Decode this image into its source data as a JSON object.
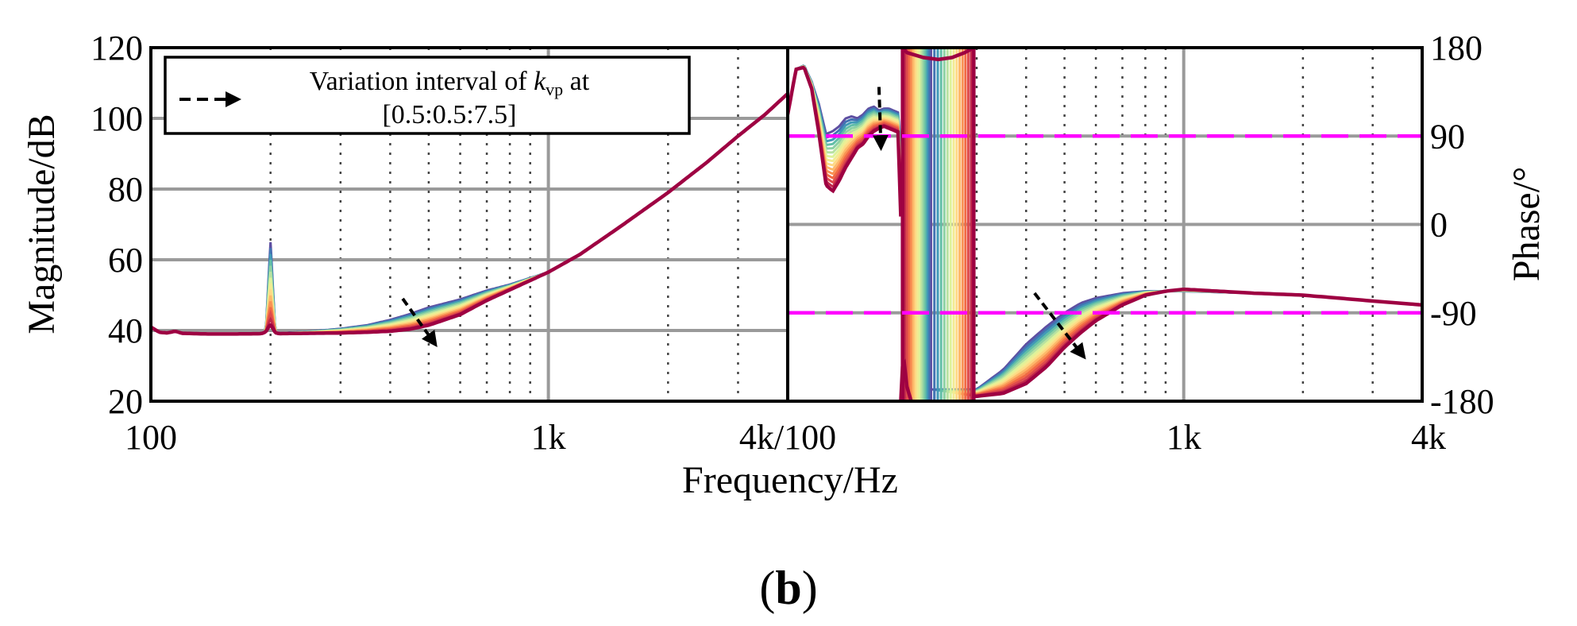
{
  "chart_data": {
    "type": "line",
    "panel_label": {
      "open": "(",
      "bold": "b",
      "close": ")"
    },
    "xlabel": "Frequency/Hz",
    "legend": {
      "line1_prefix": "Variation interval of ",
      "symbol": "k",
      "subscript": "vp",
      "line1_suffix": " at",
      "line2": "[0.5:0.5:7.5]",
      "kvp_min": 0.5,
      "kvp_step": 0.5,
      "kvp_max": 7.5,
      "curve_count": 15
    },
    "colors": {
      "reference_line": "#ff00ff",
      "arrow": "#000000",
      "palette": [
        "#5e4fa2",
        "#3288bd",
        "#66c2a5",
        "#abdda4",
        "#e6f598",
        "#fee08b",
        "#fdae61",
        "#f46d43",
        "#d53e4f",
        "#9e0142"
      ]
    },
    "magnitude": {
      "ylabel": "Magnitude/dB",
      "xlim": [
        100,
        4000
      ],
      "ylim": [
        20,
        120
      ],
      "xscale": "log",
      "xticks": [
        100,
        1000,
        4000
      ],
      "xtick_labels": [
        "100",
        "1k",
        "4k/100"
      ],
      "yticks": [
        20,
        40,
        60,
        80,
        100,
        120
      ],
      "ytick_labels": [
        "20",
        "40",
        "60",
        "80",
        "100",
        "120"
      ],
      "base_curve": {
        "x": [
          100,
          105,
          110,
          115,
          120,
          140,
          160,
          190,
          198,
          200,
          202,
          210,
          250,
          300,
          350,
          400,
          450,
          500,
          600,
          700,
          800,
          1000,
          1200,
          1500,
          2000,
          2500,
          3000,
          3500,
          4000
        ],
        "y": [
          41,
          39.5,
          39.3,
          39.8,
          39.2,
          39.0,
          39.0,
          39.1,
          40.0,
          41.5,
          39.6,
          39.1,
          39.2,
          39.3,
          39.5,
          39.8,
          40.4,
          41.5,
          44.5,
          48.5,
          51.5,
          56.5,
          61.5,
          69.0,
          79.0,
          87.5,
          95.0,
          101.0,
          107.0
        ]
      },
      "variation_bump_db": {
        "x": [
          200,
          250,
          300,
          350,
          400,
          450,
          500,
          600,
          700,
          800,
          1000
        ],
        "dy": [
          0,
          0.5,
          1.2,
          2.0,
          3.2,
          4.3,
          5.0,
          4.3,
          2.8,
          1.5,
          0
        ]
      },
      "resonance_spike": {
        "x": 200,
        "peak_min_kvp": 65.0,
        "peak_max_kvp": 41.5
      }
    },
    "phase": {
      "ylabel": "Phase/°",
      "xlim": [
        100,
        4000
      ],
      "ylim": [
        -180,
        180
      ],
      "xscale": "log",
      "xticks": [
        1000,
        4000
      ],
      "xtick_labels": [
        "1k",
        "4k"
      ],
      "yticks": [
        -180,
        -90,
        0,
        90,
        180
      ],
      "ytick_labels": [
        "-180",
        "-90",
        "0",
        "90",
        "180"
      ],
      "reference_lines": [
        90,
        -90
      ],
      "low_band": {
        "x": [
          100,
          105,
          110,
          115,
          120,
          125,
          130,
          135,
          140,
          145,
          150,
          155,
          160,
          165,
          170,
          175,
          180,
          185,
          190,
          193
        ],
        "y_kvp_min": [
          112,
          158,
          162,
          145,
          122,
          92,
          95,
          100,
          108,
          110,
          108,
          112,
          118,
          120,
          116,
          118,
          118,
          116,
          114,
          80
        ],
        "y_kvp_max": [
          112,
          158,
          160,
          138,
          92,
          40,
          34,
          45,
          58,
          68,
          78,
          82,
          90,
          95,
          98,
          100,
          98,
          96,
          94,
          8
        ]
      },
      "wrap_freq": {
        "kvp_min": 230,
        "kvp_max": 195
      },
      "high_band_start_freq": {
        "kvp_min": 230,
        "kvp_max": 295
      },
      "high_band": {
        "x": [
          300,
          350,
          400,
          450,
          500,
          550,
          600,
          700,
          800,
          900,
          1000,
          1500,
          2000,
          3000,
          4000
        ],
        "y_kvp_min": [
          -168,
          -148,
          -122,
          -104,
          -90,
          -80,
          -75,
          -70,
          -68,
          -68,
          -68,
          -70,
          -72,
          -78,
          -82
        ],
        "y_kvp_max": [
          -175,
          -172,
          -162,
          -145,
          -125,
          -110,
          -98,
          -82,
          -72,
          -68,
          -66,
          -70,
          -72,
          -78,
          -82
        ]
      },
      "top_curve": {
        "x": [
          195,
          200,
          220,
          240,
          260,
          280,
          295
        ],
        "y": [
          180,
          175,
          170,
          168,
          170,
          175,
          180
        ]
      },
      "low_spike": {
        "x": [
          193,
          195,
          197,
          200,
          205
        ],
        "y": [
          -180,
          -145,
          -142,
          -165,
          -180
        ]
      }
    },
    "annotations": [
      {
        "panel": "magnitude",
        "from": [
          430,
          49
        ],
        "to": [
          520,
          36
        ]
      },
      {
        "panel": "phase",
        "from": [
          170,
          140
        ],
        "to": [
          172,
          78
        ]
      },
      {
        "panel": "phase",
        "from": [
          420,
          -70
        ],
        "to": [
          560,
          -135
        ]
      }
    ]
  }
}
